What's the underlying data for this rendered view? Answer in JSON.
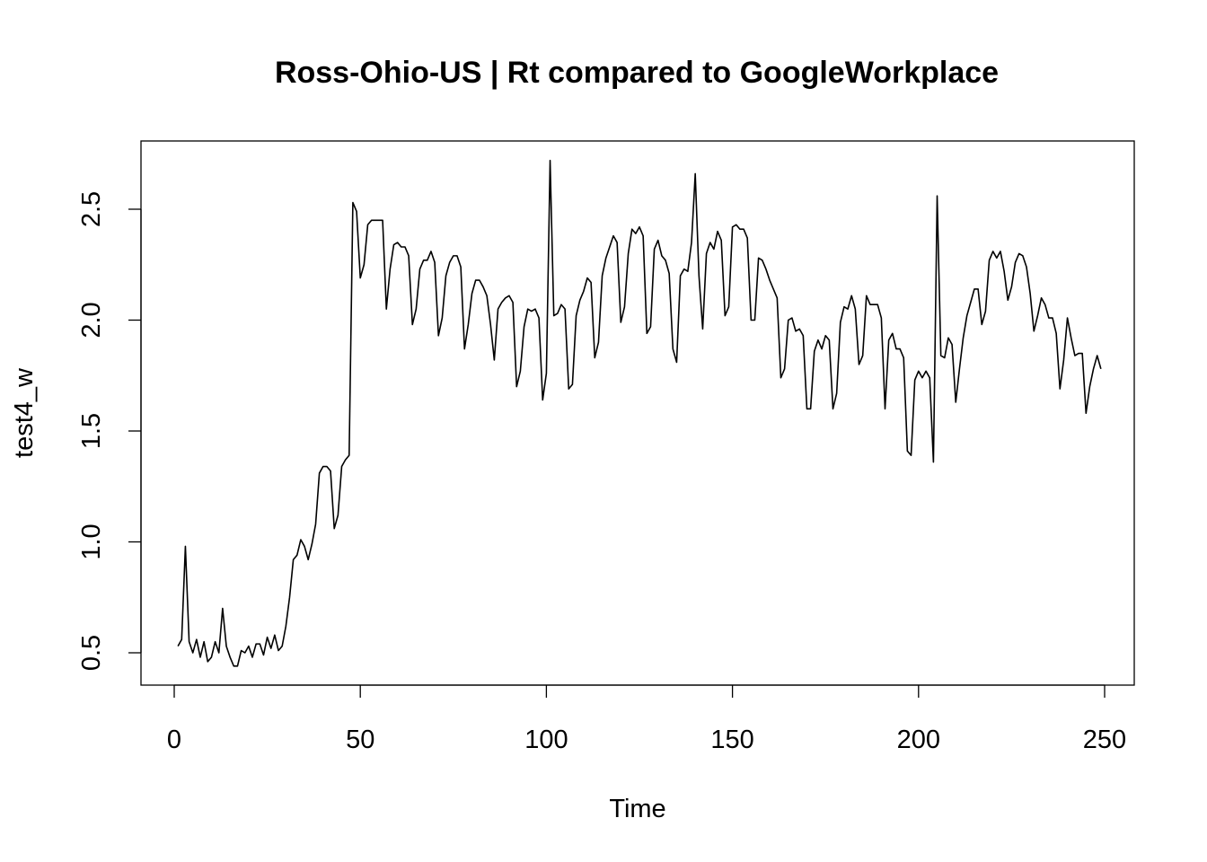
{
  "chart_data": {
    "type": "line",
    "title": "Ross-Ohio-US | Rt compared to GoogleWorkplace",
    "xlabel": "Time",
    "ylabel": "test4_w",
    "xlim": [
      0,
      250
    ],
    "ylim": [
      0.5,
      2.5
    ],
    "x_ticks": [
      0,
      50,
      100,
      150,
      200,
      250
    ],
    "y_ticks": [
      0.5,
      1.0,
      1.5,
      2.0,
      2.5
    ],
    "x_tick_labels": [
      "0",
      "50",
      "100",
      "150",
      "200",
      "250"
    ],
    "y_tick_labels": [
      "0.5",
      "1.0",
      "1.5",
      "2.0",
      "2.5"
    ],
    "grid": false,
    "series": [
      {
        "color": "#000000",
        "start_x": 1,
        "values": [
          0.53,
          0.56,
          0.98,
          0.55,
          0.5,
          0.56,
          0.48,
          0.55,
          0.46,
          0.48,
          0.55,
          0.5,
          0.7,
          0.53,
          0.48,
          0.44,
          0.44,
          0.51,
          0.5,
          0.53,
          0.48,
          0.54,
          0.54,
          0.49,
          0.57,
          0.52,
          0.58,
          0.51,
          0.53,
          0.62,
          0.75,
          0.92,
          0.94,
          1.01,
          0.98,
          0.92,
          0.99,
          1.08,
          1.31,
          1.34,
          1.34,
          1.32,
          1.06,
          1.12,
          1.34,
          1.37,
          1.39,
          2.53,
          2.49,
          2.19,
          2.25,
          2.43,
          2.45,
          2.45,
          2.45,
          2.45,
          2.05,
          2.23,
          2.34,
          2.35,
          2.33,
          2.33,
          2.29,
          1.98,
          2.05,
          2.23,
          2.27,
          2.27,
          2.31,
          2.26,
          1.93,
          2.01,
          2.2,
          2.26,
          2.29,
          2.29,
          2.24,
          1.87,
          1.98,
          2.12,
          2.18,
          2.18,
          2.15,
          2.11,
          1.98,
          1.82,
          2.05,
          2.08,
          2.1,
          2.11,
          2.08,
          1.7,
          1.77,
          1.97,
          2.05,
          2.04,
          2.05,
          2.01,
          1.64,
          1.76,
          2.72,
          2.02,
          2.03,
          2.07,
          2.05,
          1.69,
          1.71,
          2.02,
          2.09,
          2.13,
          2.19,
          2.17,
          1.83,
          1.9,
          2.2,
          2.28,
          2.33,
          2.38,
          2.35,
          1.99,
          2.06,
          2.3,
          2.41,
          2.39,
          2.42,
          2.38,
          1.94,
          1.97,
          2.32,
          2.36,
          2.29,
          2.27,
          2.21,
          1.87,
          1.81,
          2.2,
          2.23,
          2.22,
          2.35,
          2.66,
          2.2,
          1.96,
          2.3,
          2.35,
          2.32,
          2.4,
          2.36,
          2.02,
          2.06,
          2.42,
          2.43,
          2.41,
          2.41,
          2.37,
          2.0,
          2.0,
          2.28,
          2.27,
          2.23,
          2.18,
          2.14,
          2.1,
          1.74,
          1.78,
          2.0,
          2.01,
          1.95,
          1.96,
          1.93,
          1.6,
          1.6,
          1.86,
          1.91,
          1.87,
          1.93,
          1.91,
          1.6,
          1.67,
          1.99,
          2.06,
          2.05,
          2.11,
          2.05,
          1.8,
          1.84,
          2.11,
          2.07,
          2.07,
          2.07,
          2.01,
          1.6,
          1.91,
          1.94,
          1.87,
          1.87,
          1.83,
          1.41,
          1.39,
          1.73,
          1.77,
          1.74,
          1.77,
          1.74,
          1.36,
          2.56,
          1.84,
          1.83,
          1.92,
          1.89,
          1.63,
          1.78,
          1.92,
          2.02,
          2.08,
          2.14,
          2.14,
          1.98,
          2.04,
          2.27,
          2.31,
          2.28,
          2.31,
          2.22,
          2.09,
          2.15,
          2.26,
          2.3,
          2.29,
          2.24,
          2.12,
          1.95,
          2.02,
          2.1,
          2.07,
          2.01,
          2.01,
          1.94,
          1.69,
          1.82,
          2.01,
          1.92,
          1.84,
          1.85,
          1.85,
          1.58,
          1.7,
          1.78,
          1.84,
          1.78
        ]
      }
    ]
  }
}
